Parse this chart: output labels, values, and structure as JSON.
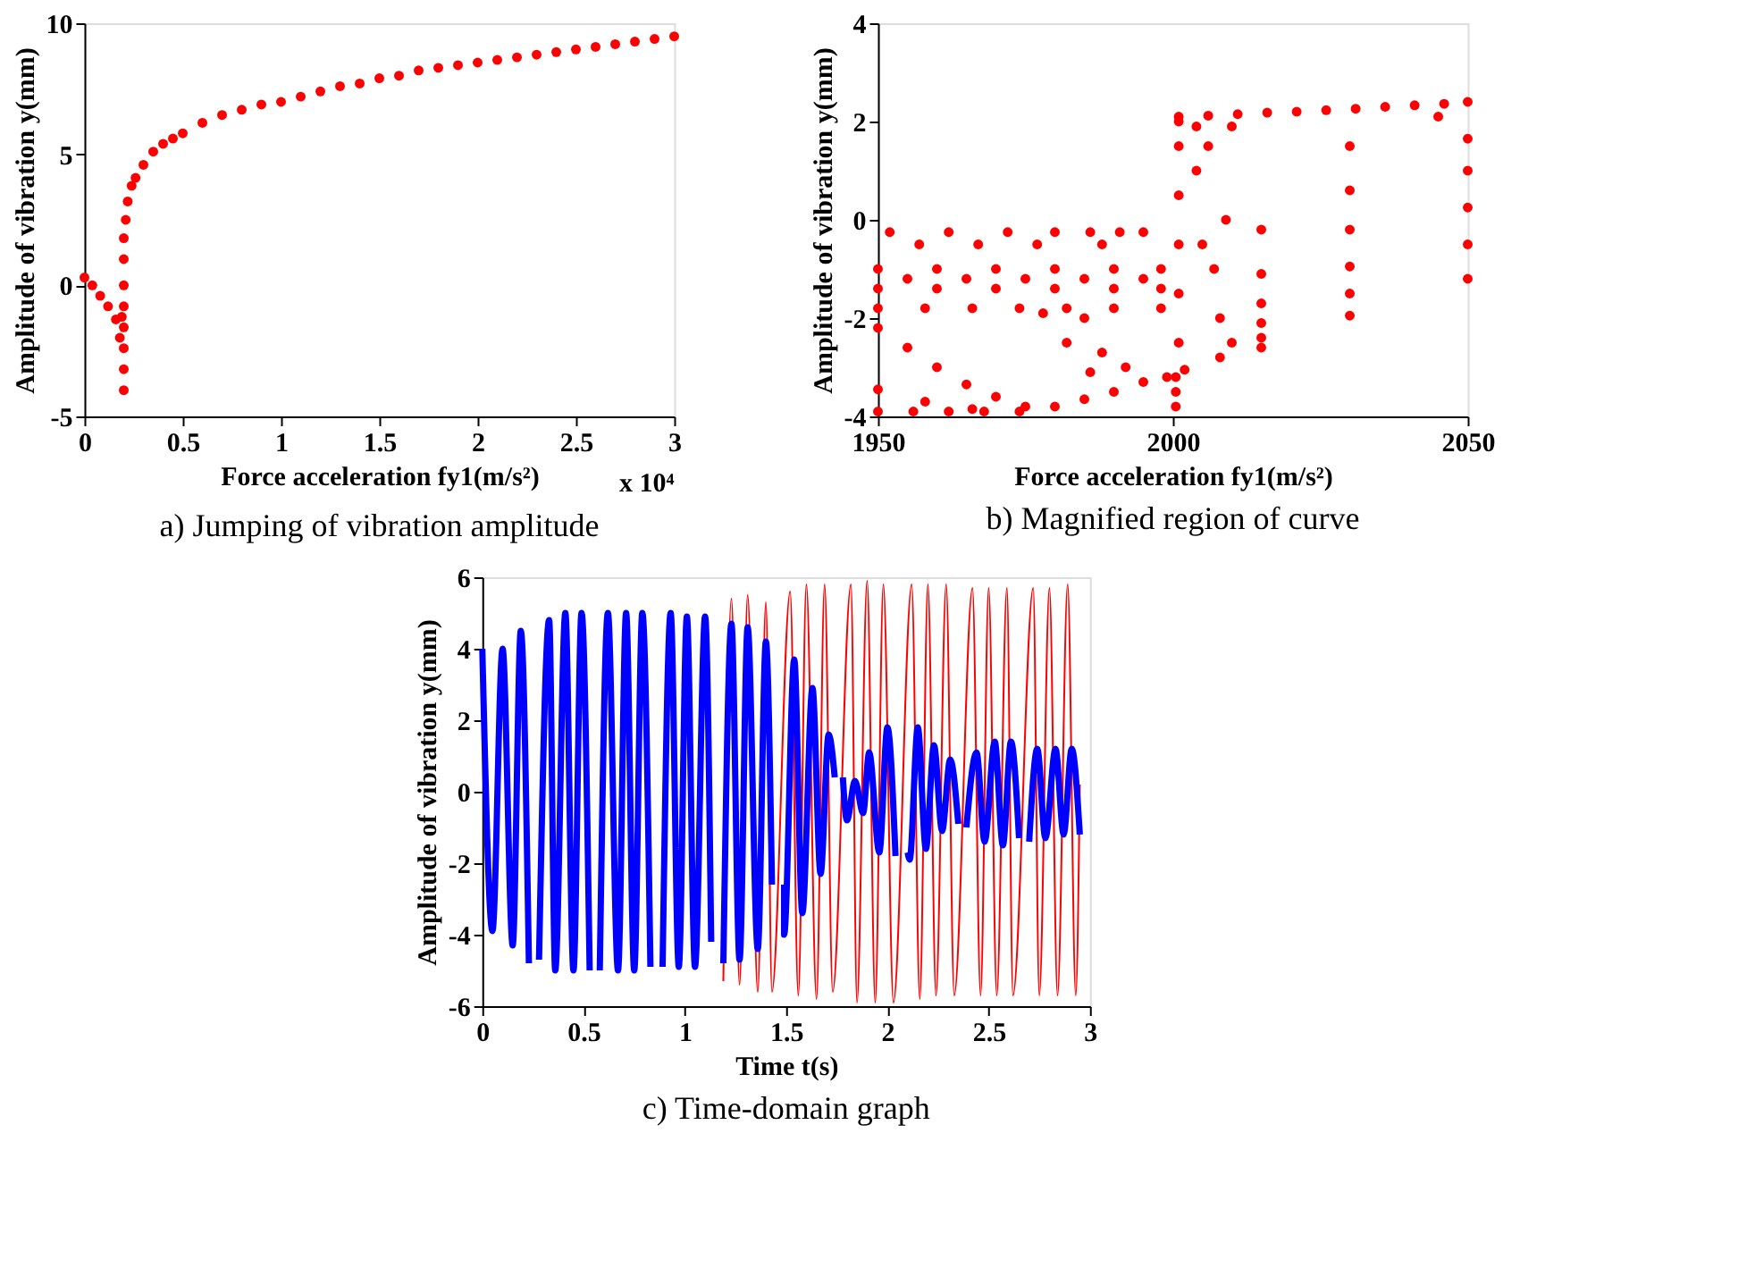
{
  "chart_data": [
    {
      "type": "scatter",
      "title": "a) Jumping of vibration amplitude",
      "xlabel": "Force acceleration fy1(m/s²)",
      "ylabel": "Amplitude of vibration y(mm)",
      "annotations": [
        "x 10⁴"
      ],
      "xlim": [
        0,
        3
      ],
      "xticks": [
        0,
        0.5,
        1,
        1.5,
        2,
        2.5,
        3
      ],
      "ylim": [
        -5,
        10
      ],
      "yticks": [
        -5,
        0,
        5,
        10
      ],
      "grid": false,
      "marker": "circle",
      "series": [
        {
          "color": "#ff0000",
          "x": [
            0,
            0.04,
            0.08,
            0.12,
            0.16,
            0.18,
            0.19,
            0.2,
            0.2,
            0.2,
            0.2,
            0.2,
            0.2,
            0.2,
            0.2,
            0.21,
            0.22,
            0.24,
            0.26,
            0.3,
            0.35,
            0.4,
            0.45,
            0.5,
            0.6,
            0.7,
            0.8,
            0.9,
            1,
            1.1,
            1.2,
            1.3,
            1.4,
            1.5,
            1.6,
            1.7,
            1.8,
            1.9,
            2,
            2.1,
            2.2,
            2.3,
            2.4,
            2.5,
            2.6,
            2.7,
            2.8,
            2.9,
            3
          ],
          "values": [
            0.3,
            0,
            -0.4,
            -0.8,
            -1.3,
            -2.0,
            -1.2,
            -4,
            -3.2,
            -2.4,
            -1.6,
            -0.8,
            0,
            1,
            1.8,
            2.5,
            3.2,
            3.8,
            4.1,
            4.6,
            5.1,
            5.4,
            5.6,
            5.8,
            6.2,
            6.5,
            6.7,
            6.9,
            7.0,
            7.2,
            7.4,
            7.6,
            7.7,
            7.9,
            8.0,
            8.2,
            8.3,
            8.4,
            8.5,
            8.6,
            8.7,
            8.8,
            8.9,
            9.0,
            9.1,
            9.2,
            9.3,
            9.4,
            9.5
          ]
        }
      ]
    },
    {
      "type": "scatter",
      "title": "b) Magnified region of curve",
      "xlabel": "Force acceleration fy1(m/s²)",
      "ylabel": "Amplitude of vibration y(mm)",
      "xlim": [
        1950,
        2050
      ],
      "xticks": [
        1950,
        2000,
        2050
      ],
      "ylim": [
        -4,
        4
      ],
      "yticks": [
        -4,
        -2,
        0,
        2,
        4
      ],
      "grid": false,
      "marker": "circle",
      "series": [
        {
          "color": "#ff0000",
          "x": [
            1950,
            1960,
            1970,
            1980,
            1990,
            1998,
            1955,
            1965,
            1975,
            1985,
            1995,
            1950,
            1960,
            1970,
            1980,
            1990,
            1998,
            1950,
            1958,
            1966,
            1974,
            1982,
            1990,
            1998,
            1952,
            1962,
            1972,
            1980,
            1986,
            1991,
            1995,
            1957,
            1967,
            1977,
            1988,
            1950,
            1955,
            1960,
            1965,
            1970,
            1975,
            1950,
            1958,
            1966,
            1950,
            1956,
            1962,
            1968,
            1974,
            1980,
            1985,
            1990,
            1995,
            1999,
            1978,
            1982,
            1986,
            1985,
            1988,
            1992,
            2000.5,
            2000.5,
            2000.5,
            2001,
            2001,
            2001,
            2001,
            2001,
            2001,
            2001,
            2006,
            2011,
            2016,
            2021,
            2026,
            2031,
            2036,
            2041,
            2046,
            2050,
            2004,
            2010,
            2002,
            2015,
            2030,
            2050,
            2015,
            2030,
            2050,
            2015,
            2030,
            2050,
            2015,
            2030,
            2050,
            2015,
            2030,
            2050,
            2015,
            2030,
            2045,
            2005,
            2008,
            2010,
            2004,
            2007,
            2006,
            2009,
            2008
          ],
          "values": [
            -1,
            -1,
            -1,
            -1,
            -1,
            -1,
            -1.2,
            -1.2,
            -1.2,
            -1.2,
            -1.2,
            -1.4,
            -1.4,
            -1.4,
            -1.4,
            -1.4,
            -1.4,
            -1.8,
            -1.8,
            -1.8,
            -1.8,
            -1.8,
            -1.8,
            -1.8,
            -0.25,
            -0.25,
            -0.25,
            -0.25,
            -0.25,
            -0.25,
            -0.25,
            -0.5,
            -0.5,
            -0.5,
            -0.5,
            -2.2,
            -2.6,
            -3.0,
            -3.35,
            -3.6,
            -3.8,
            -3.45,
            -3.7,
            -3.85,
            -3.9,
            -3.9,
            -3.9,
            -3.9,
            -3.9,
            -3.8,
            -3.65,
            -3.5,
            -3.3,
            -3.2,
            -1.9,
            -2.5,
            -3.1,
            -2.0,
            -2.7,
            -3.0,
            -3.8,
            -3.5,
            -3.2,
            -2.5,
            -1.5,
            -0.5,
            0.5,
            1.5,
            2.0,
            2.1,
            2.12,
            2.15,
            2.18,
            2.2,
            2.23,
            2.26,
            2.3,
            2.33,
            2.36,
            2.4,
            1.9,
            1.9,
            -3.05,
            -2.6,
            -1.95,
            -1.2,
            -2.4,
            -1.5,
            -0.5,
            -2.1,
            -0.95,
            0.25,
            -1.7,
            -0.2,
            1.0,
            -1.1,
            0.6,
            1.65,
            -0.2,
            1.5,
            2.1,
            -0.5,
            -2.0,
            -2.5,
            1.0,
            -1.0,
            1.5,
            0,
            -2.8
          ]
        }
      ]
    },
    {
      "type": "line",
      "title": "c) Time-domain graph",
      "xlabel": "Time t(s)",
      "ylabel": "Amplitude of vibration y(mm)",
      "xlim": [
        0,
        3
      ],
      "xticks": [
        0,
        0.5,
        1,
        1.5,
        2,
        2.5,
        3
      ],
      "ylim": [
        -6,
        6
      ],
      "yticks": [
        -6,
        -4,
        -2,
        0,
        2,
        4,
        6
      ],
      "grid": false,
      "line_style": "solid",
      "series": [
        {
          "color": "#ff0000",
          "x": [
            1.19,
            1.23,
            1.27,
            1.31,
            1.36,
            1.4,
            1.43,
            1.52,
            1.56,
            1.6,
            1.65,
            1.69,
            1.73,
            1.82,
            1.85,
            1.9,
            1.94,
            1.98,
            2.03,
            2.12,
            2.16,
            2.2,
            2.24,
            2.29,
            2.33,
            2.42,
            2.46,
            2.5,
            2.54,
            2.59,
            2.62,
            2.72,
            2.75,
            2.8,
            2.84,
            2.89,
            2.93,
            2.95
          ],
          "values": [
            -5.3,
            5.4,
            -5.4,
            5.5,
            -5.6,
            5.3,
            -5.6,
            5.6,
            -5.7,
            5.8,
            -5.8,
            5.8,
            -5.6,
            5.8,
            -5.9,
            5.9,
            -5.9,
            5.8,
            -5.9,
            5.8,
            -5.8,
            5.8,
            -5.7,
            5.8,
            -5.7,
            5.7,
            -5.7,
            5.7,
            -5.7,
            5.7,
            -5.7,
            5.7,
            -5.7,
            5.7,
            -5.7,
            5.8,
            -5.7,
            0.2
          ]
        },
        {
          "color": "#0000ff",
          "x": [
            0,
            0.05,
            0.1,
            0.15,
            0.19,
            0.23,
            0.255,
            0.28,
            0.33,
            0.36,
            0.41,
            0.45,
            0.49,
            0.53,
            0.555,
            0.58,
            0.62,
            0.67,
            0.71,
            0.75,
            0.79,
            0.83,
            0.86,
            0.89,
            0.93,
            0.97,
            1.01,
            1.05,
            1.1,
            1.13,
            1.16,
            1.19,
            1.23,
            1.27,
            1.31,
            1.36,
            1.4,
            1.43,
            1.46,
            1.49,
            1.49,
            1.54,
            1.58,
            1.63,
            1.67,
            1.71,
            1.74,
            1.76,
            1.78,
            1.8,
            1.84,
            1.88,
            1.91,
            1.96,
            2.0,
            2.04,
            2.07,
            2.1,
            2.11,
            2.15,
            2.19,
            2.23,
            2.27,
            2.31,
            2.35,
            2.37,
            2.39,
            2.44,
            2.48,
            2.53,
            2.57,
            2.61,
            2.65,
            2.675,
            2.7,
            2.74,
            2.78,
            2.83,
            2.87,
            2.91,
            2.95
          ],
          "values": [
            4.0,
            -3.9,
            4.0,
            -4.3,
            4.5,
            -4.8,
            null,
            -4.7,
            4.8,
            -5.0,
            5.0,
            -5.0,
            5.0,
            -5.0,
            null,
            -5.0,
            5.0,
            -5.0,
            5.0,
            -5.0,
            5.0,
            -4.9,
            null,
            -4.9,
            5.0,
            -4.9,
            4.9,
            -4.9,
            4.9,
            -4.2,
            null,
            -4.8,
            4.7,
            -4.7,
            4.6,
            -4.4,
            4.2,
            -2.6,
            null,
            -2.6,
            -4.0,
            3.7,
            -3.4,
            2.9,
            -2.3,
            1.6,
            0.4,
            null,
            0.4,
            -0.8,
            0.3,
            -0.6,
            1.1,
            -1.7,
            1.8,
            -1.8,
            null,
            -1.7,
            -1.9,
            1.8,
            -1.6,
            1.3,
            -1.1,
            0.9,
            -0.9,
            null,
            -1.0,
            1.1,
            -1.4,
            1.4,
            -1.5,
            1.4,
            -1.3,
            null,
            -1.4,
            1.2,
            -1.3,
            1.2,
            -1.2,
            1.2,
            -1.2
          ]
        }
      ]
    }
  ]
}
